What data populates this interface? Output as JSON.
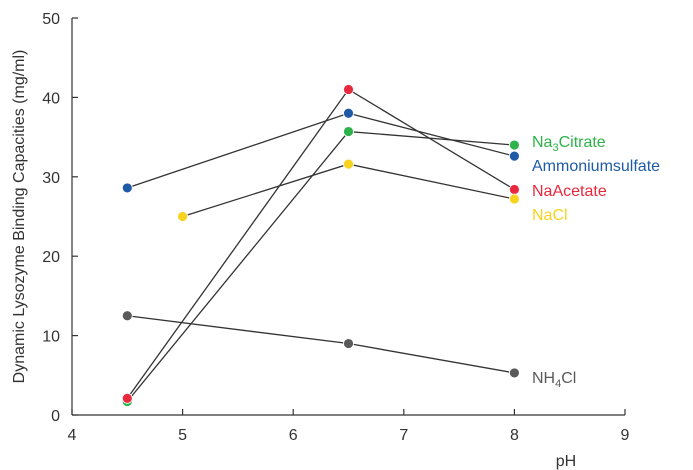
{
  "chart_data": {
    "type": "line",
    "title": "",
    "xlabel": "pH",
    "ylabel": "Dynamic Lysozyme Binding Capacities (mg/ml)",
    "xlim": [
      4,
      9
    ],
    "ylim": [
      0,
      50
    ],
    "xticks": [
      4,
      5,
      6,
      7,
      8,
      9
    ],
    "yticks": [
      0,
      10,
      20,
      30,
      40,
      50
    ],
    "grid": false,
    "series": [
      {
        "name": "Na3Citrate",
        "label_main": "Na",
        "label_sub": "3",
        "label_tail": "Citrate",
        "color": "#2db34a",
        "x": [
          4.5,
          6.5,
          8.0
        ],
        "y": [
          1.7,
          35.7,
          34.0
        ]
      },
      {
        "name": "Ammoniumsulfate",
        "label_main": "Ammoniumsulfate",
        "label_sub": "",
        "label_tail": "",
        "color": "#1f5aa6",
        "x": [
          4.5,
          6.5,
          8.0
        ],
        "y": [
          28.6,
          38.0,
          32.6
        ]
      },
      {
        "name": "NaAcetate",
        "label_main": "NaAcetate",
        "label_sub": "",
        "label_tail": "",
        "color": "#e8283c",
        "x": [
          4.5,
          6.5,
          8.0
        ],
        "y": [
          2.1,
          41.0,
          28.4
        ]
      },
      {
        "name": "NaCl",
        "label_main": "NaCl",
        "label_sub": "",
        "label_tail": "",
        "color": "#f7d21e",
        "x": [
          5.0,
          6.5,
          8.0
        ],
        "y": [
          25.0,
          31.6,
          27.2
        ]
      },
      {
        "name": "NH4Cl",
        "label_main": "NH",
        "label_sub": "4",
        "label_tail": "Cl",
        "color": "#5a5a5a",
        "x": [
          4.5,
          6.5,
          8.0
        ],
        "y": [
          12.5,
          9.0,
          5.3
        ]
      }
    ]
  }
}
